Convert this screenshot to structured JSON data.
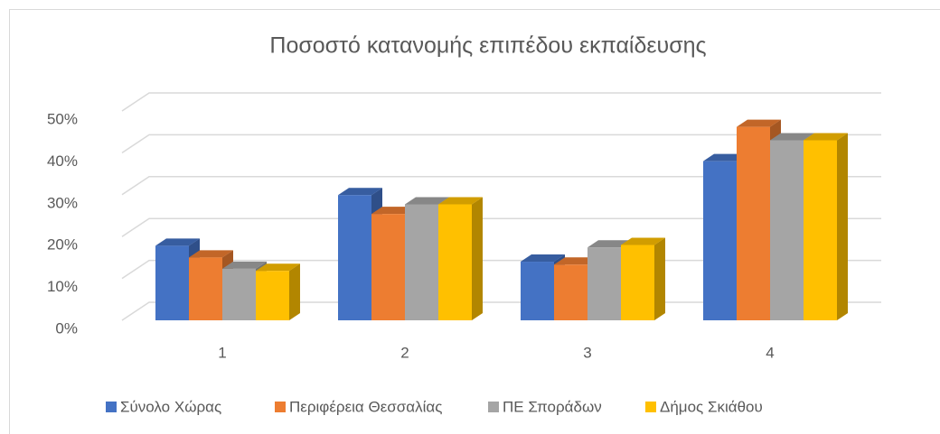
{
  "chart_data": {
    "type": "bar3d",
    "title": "Ποσοστό κατανομής επιπέδου εκπαίδευσης",
    "categories": [
      "1",
      "2",
      "3",
      "4"
    ],
    "series": [
      {
        "name": "Σύνολο Χώρας",
        "color": "#4472c4",
        "values": [
          17.8,
          29.9,
          14,
          38
        ]
      },
      {
        "name": "Περιφέρεια Θεσσαλίας",
        "color": "#ed7d31",
        "values": [
          15,
          25.4,
          13.3,
          46.2
        ]
      },
      {
        "name": "ΠΕ Σποράδων",
        "color": "#a5a5a5",
        "values": [
          12.3,
          27.7,
          17.4,
          43
        ]
      },
      {
        "name": "Δήμος Σκιάθου",
        "color": "#ffc000",
        "values": [
          11.8,
          27.7,
          18,
          43
        ]
      }
    ],
    "ylim": [
      0,
      50
    ],
    "yticks": [
      {
        "value": 0,
        "label": "0%"
      },
      {
        "value": 10,
        "label": "10%"
      },
      {
        "value": 20,
        "label": "20%"
      },
      {
        "value": 30,
        "label": "30%"
      },
      {
        "value": 40,
        "label": "40%"
      },
      {
        "value": 50,
        "label": "50%"
      }
    ],
    "grid": true,
    "legend": "bottom"
  }
}
